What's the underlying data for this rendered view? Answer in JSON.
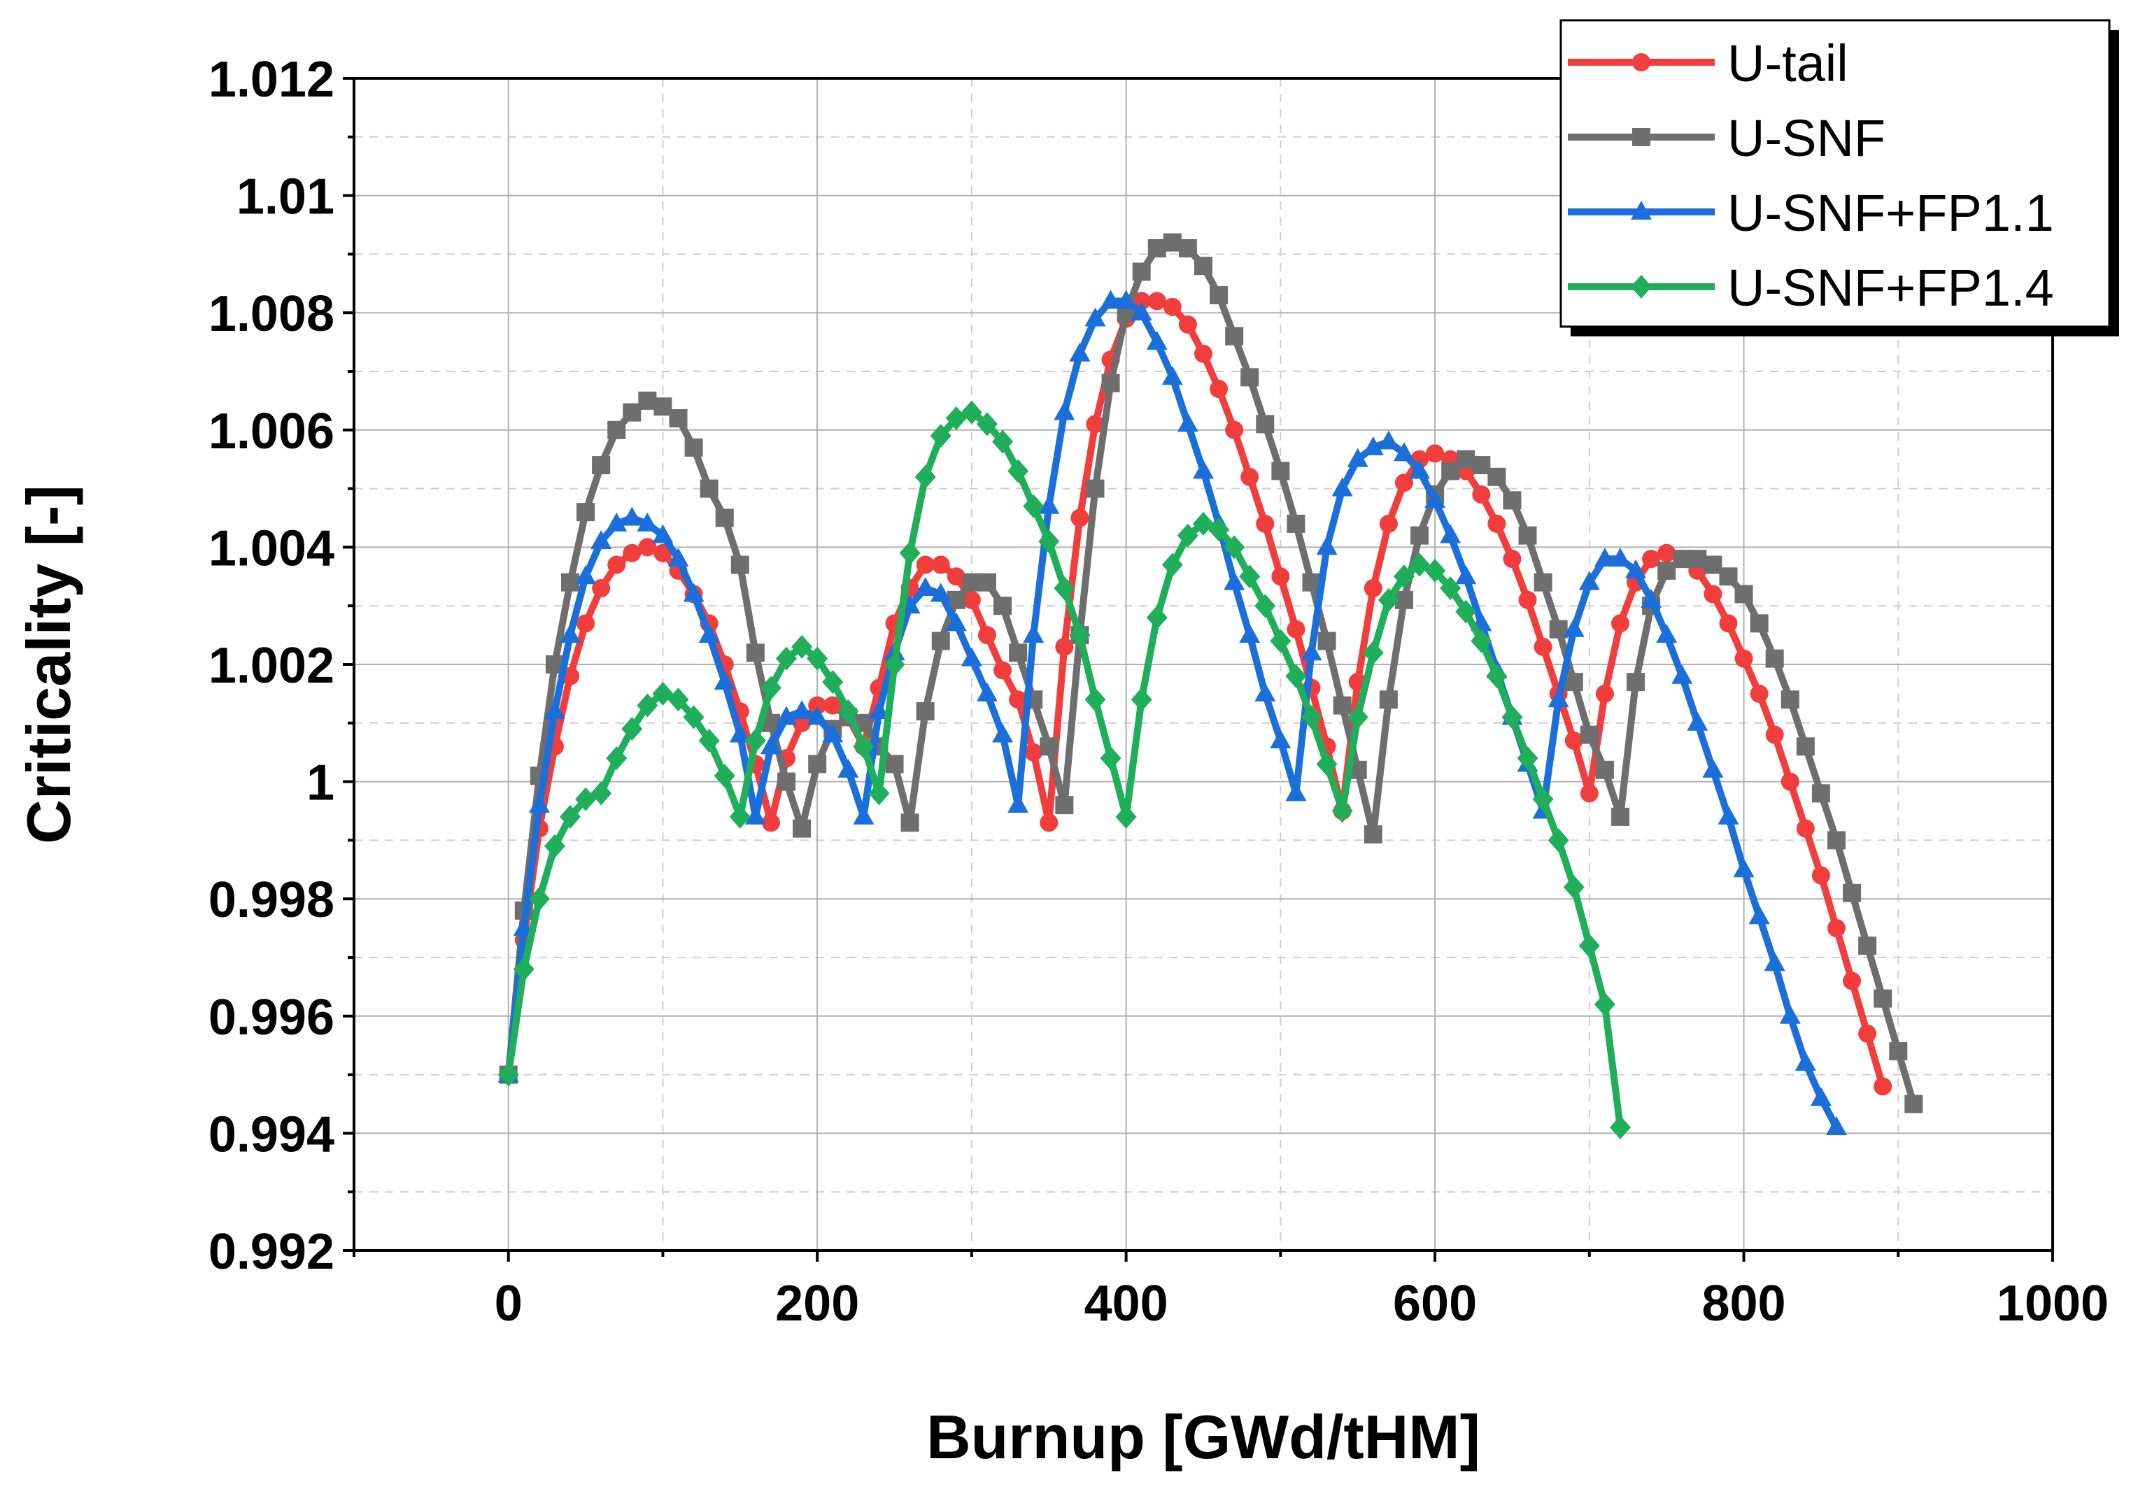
{
  "chart_data": {
    "type": "line",
    "x_label": "Burnup [GWd/tHM]",
    "y_label": "Criticality [-]",
    "xlim": [
      -100,
      1000
    ],
    "xticks": [
      0,
      200,
      400,
      600,
      800,
      1000
    ],
    "xminorticks": [
      -100,
      100,
      300,
      500,
      700,
      900
    ],
    "ylim": [
      0.992,
      1.012
    ],
    "yticks": [
      0.992,
      0.994,
      0.996,
      0.998,
      1,
      1.002,
      1.004,
      1.006,
      1.008,
      1.01,
      1.012
    ],
    "yminorticks": [
      0.993,
      0.995,
      0.997,
      0.999,
      1.001,
      1.003,
      1.005,
      1.007,
      1.009,
      1.011
    ],
    "grid": true,
    "legend": "upper right",
    "series": [
      {
        "name": "U-tail",
        "color": "#f23d3d",
        "marker": "circle",
        "x": [
          0,
          10,
          20,
          30,
          40,
          50,
          60,
          70,
          80,
          90,
          100,
          110,
          120,
          130,
          140,
          150,
          160,
          170,
          180,
          190,
          200,
          210,
          220,
          230,
          240,
          250,
          260,
          270,
          280,
          290,
          300,
          310,
          320,
          330,
          340,
          350,
          360,
          370,
          380,
          390,
          400,
          410,
          420,
          430,
          440,
          450,
          460,
          470,
          480,
          490,
          500,
          510,
          520,
          530,
          540,
          550,
          560,
          570,
          580,
          590,
          600,
          610,
          620,
          630,
          640,
          650,
          660,
          670,
          680,
          690,
          700,
          710,
          720,
          730,
          740,
          750,
          760,
          770,
          780,
          790,
          800,
          810,
          820,
          830,
          840,
          850,
          860,
          870,
          880,
          890
        ],
        "values": [
          0.995,
          0.9973,
          0.9992,
          1.0006,
          1.0018,
          1.0027,
          1.0033,
          1.0037,
          1.0039,
          1.004,
          1.0039,
          1.0036,
          1.0032,
          1.0027,
          1.002,
          1.0012,
          1.0003,
          0.9993,
          1.0004,
          1.001,
          1.0013,
          1.0013,
          1.0011,
          1.0006,
          1.0016,
          1.0027,
          1.0033,
          1.0037,
          1.0037,
          1.0035,
          1.0031,
          1.0025,
          1.0019,
          1.0014,
          1.0005,
          0.9993,
          1.0023,
          1.0045,
          1.0061,
          1.0072,
          1.0079,
          1.0082,
          1.0082,
          1.0081,
          1.0078,
          1.0073,
          1.0067,
          1.006,
          1.0052,
          1.0044,
          1.0035,
          1.0026,
          1.0016,
          1.0006,
          0.9995,
          1.0017,
          1.0033,
          1.0044,
          1.0051,
          1.0055,
          1.0056,
          1.0055,
          1.0053,
          1.0049,
          1.0044,
          1.0038,
          1.0031,
          1.0023,
          1.0015,
          1.0007,
          0.9998,
          1.0015,
          1.0027,
          1.0034,
          1.0038,
          1.0039,
          1.0038,
          1.0036,
          1.0032,
          1.0027,
          1.0021,
          1.0015,
          1.0008,
          1.0,
          0.9992,
          0.9984,
          0.9975,
          0.9966,
          0.9957,
          0.9948
        ]
      },
      {
        "name": "U-SNF",
        "color": "#6e6e6e",
        "marker": "square",
        "x": [
          0,
          10,
          20,
          30,
          40,
          50,
          60,
          70,
          80,
          90,
          100,
          110,
          120,
          130,
          140,
          150,
          160,
          170,
          180,
          190,
          200,
          210,
          220,
          230,
          240,
          250,
          260,
          270,
          280,
          290,
          300,
          310,
          320,
          330,
          340,
          350,
          360,
          370,
          380,
          390,
          400,
          410,
          420,
          430,
          440,
          450,
          460,
          470,
          480,
          490,
          500,
          510,
          520,
          530,
          540,
          550,
          560,
          570,
          580,
          590,
          600,
          610,
          620,
          630,
          640,
          650,
          660,
          670,
          680,
          690,
          700,
          710,
          720,
          730,
          740,
          750,
          760,
          770,
          780,
          790,
          800,
          810,
          820,
          830,
          840,
          850,
          860,
          870,
          880,
          890,
          900,
          910
        ],
        "values": [
          0.995,
          0.9978,
          1.0001,
          1.002,
          1.0034,
          1.0046,
          1.0054,
          1.006,
          1.0063,
          1.0065,
          1.0064,
          1.0062,
          1.0057,
          1.005,
          1.0045,
          1.0037,
          1.0022,
          1.001,
          1.0,
          0.9992,
          1.0003,
          1.0009,
          1.0011,
          1.001,
          1.0006,
          1.0003,
          0.9993,
          1.0012,
          1.0024,
          1.0031,
          1.0034,
          1.0034,
          1.003,
          1.0022,
          1.0014,
          1.0006,
          0.9996,
          1.0025,
          1.005,
          1.0068,
          1.008,
          1.0087,
          1.0091,
          1.0092,
          1.0091,
          1.0088,
          1.0083,
          1.0076,
          1.0069,
          1.0061,
          1.0053,
          1.0044,
          1.0034,
          1.0024,
          1.0013,
          1.0002,
          0.9991,
          1.0014,
          1.0031,
          1.0042,
          1.0049,
          1.0053,
          1.0055,
          1.0054,
          1.0052,
          1.0048,
          1.0042,
          1.0034,
          1.0026,
          1.0017,
          1.0008,
          1.0002,
          0.9994,
          1.0017,
          1.003,
          1.0036,
          1.0038,
          1.0038,
          1.0037,
          1.0035,
          1.0032,
          1.0027,
          1.0021,
          1.0014,
          1.0006,
          0.9998,
          0.999,
          0.9981,
          0.9972,
          0.9963,
          0.9954,
          0.9945
        ]
      },
      {
        "name": "U-SNF+FP1.1",
        "color": "#1a6fdb",
        "marker": "triangle",
        "x": [
          0,
          10,
          20,
          30,
          40,
          50,
          60,
          70,
          80,
          90,
          100,
          110,
          120,
          130,
          140,
          150,
          160,
          170,
          180,
          190,
          200,
          210,
          220,
          230,
          240,
          250,
          260,
          270,
          280,
          290,
          300,
          310,
          320,
          330,
          340,
          350,
          360,
          370,
          380,
          390,
          400,
          410,
          420,
          430,
          440,
          450,
          460,
          470,
          480,
          490,
          500,
          510,
          520,
          530,
          540,
          550,
          560,
          570,
          580,
          590,
          600,
          610,
          620,
          630,
          640,
          650,
          660,
          670,
          680,
          690,
          700,
          710,
          720,
          730,
          740,
          750,
          760,
          770,
          780,
          790,
          800,
          810,
          820,
          830,
          840,
          850,
          860
        ],
        "values": [
          0.995,
          0.9975,
          0.9996,
          1.0012,
          1.0025,
          1.0035,
          1.0041,
          1.0044,
          1.0045,
          1.0044,
          1.0042,
          1.0038,
          1.0032,
          1.0025,
          1.0017,
          1.0008,
          0.9994,
          1.0006,
          1.0011,
          1.0012,
          1.0011,
          1.0008,
          1.0002,
          0.9994,
          1.0012,
          1.0022,
          1.003,
          1.0033,
          1.0032,
          1.0027,
          1.0021,
          1.0015,
          1.0008,
          0.9996,
          1.0025,
          1.0047,
          1.0063,
          1.0073,
          1.0079,
          1.0082,
          1.0082,
          1.008,
          1.0075,
          1.0069,
          1.0061,
          1.0053,
          1.0044,
          1.0034,
          1.0025,
          1.0015,
          1.0007,
          0.9998,
          1.0022,
          1.004,
          1.005,
          1.0055,
          1.0057,
          1.0058,
          1.0056,
          1.0053,
          1.0048,
          1.0042,
          1.0035,
          1.0027,
          1.0019,
          1.0011,
          1.0003,
          0.9995,
          1.0014,
          1.0026,
          1.0034,
          1.0038,
          1.0038,
          1.0036,
          1.0031,
          1.0025,
          1.0018,
          1.001,
          1.0002,
          0.9994,
          0.9985,
          0.9977,
          0.9969,
          0.996,
          0.9952,
          0.9946,
          0.9941
        ]
      },
      {
        "name": "U-SNF+FP1.4",
        "color": "#1fae5a",
        "marker": "diamond",
        "x": [
          0,
          10,
          20,
          30,
          40,
          50,
          60,
          70,
          80,
          90,
          100,
          110,
          120,
          130,
          140,
          150,
          160,
          170,
          180,
          190,
          200,
          210,
          220,
          230,
          240,
          250,
          260,
          270,
          280,
          290,
          300,
          310,
          320,
          330,
          340,
          350,
          360,
          370,
          380,
          390,
          400,
          410,
          420,
          430,
          440,
          450,
          460,
          470,
          480,
          490,
          500,
          510,
          520,
          530,
          540,
          550,
          560,
          570,
          580,
          590,
          600,
          610,
          620,
          630,
          640,
          650,
          660,
          670,
          680,
          690,
          700,
          710,
          720
        ],
        "values": [
          0.995,
          0.9968,
          0.998,
          0.9989,
          0.9994,
          0.9997,
          0.9998,
          1.0004,
          1.0009,
          1.0013,
          1.0015,
          1.0014,
          1.0011,
          1.0007,
          1.0001,
          0.9994,
          1.0007,
          1.0016,
          1.0021,
          1.0023,
          1.0021,
          1.0017,
          1.0012,
          1.0006,
          0.9998,
          1.002,
          1.0039,
          1.0052,
          1.0059,
          1.0062,
          1.0063,
          1.0061,
          1.0058,
          1.0053,
          1.0047,
          1.0041,
          1.0033,
          1.0025,
          1.0014,
          1.0004,
          0.9994,
          1.0014,
          1.0028,
          1.0037,
          1.0042,
          1.0044,
          1.0043,
          1.004,
          1.0035,
          1.003,
          1.0024,
          1.0018,
          1.0011,
          1.0003,
          0.9995,
          1.0011,
          1.0022,
          1.0031,
          1.0035,
          1.0037,
          1.0036,
          1.0033,
          1.0029,
          1.0024,
          1.0018,
          1.0011,
          1.0004,
          0.9997,
          0.999,
          0.9982,
          0.9972,
          0.9962,
          0.9941
        ]
      }
    ]
  }
}
